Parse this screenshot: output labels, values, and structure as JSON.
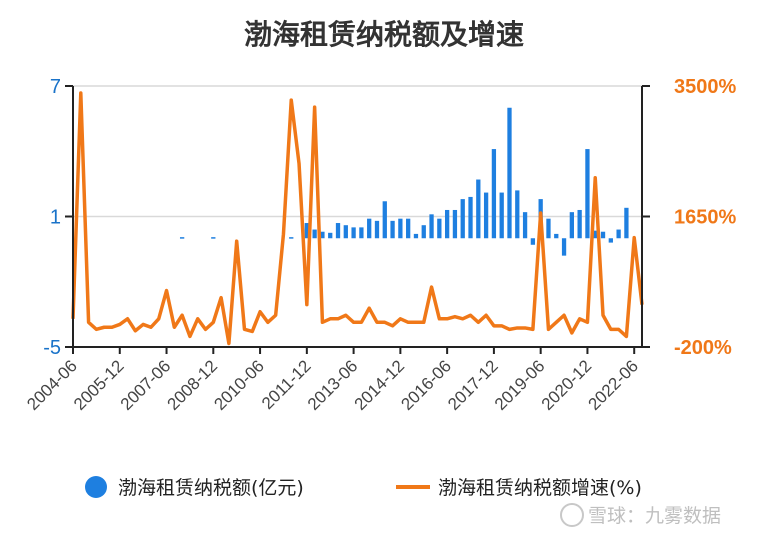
{
  "chart_data": {
    "type": "bar+line",
    "title": "渤海租赁纳税额及增速",
    "x_tick_labels": [
      "2004-06",
      "2005-12",
      "2007-06",
      "2008-12",
      "2010-06",
      "2011-12",
      "2013-06",
      "2014-12",
      "2016-06",
      "2017-12",
      "2019-06",
      "2020-12",
      "2022-06"
    ],
    "series": [
      {
        "name": "渤海租赁纳税额(亿元)",
        "type": "bar",
        "axis": "left",
        "color": "#1e7fe0",
        "x": [
          "2004-06",
          "2004-09",
          "2004-12",
          "2005-03",
          "2005-06",
          "2005-09",
          "2005-12",
          "2006-03",
          "2006-06",
          "2006-09",
          "2006-12",
          "2007-03",
          "2007-06",
          "2007-09",
          "2007-12",
          "2008-03",
          "2008-06",
          "2008-09",
          "2008-12",
          "2009-03",
          "2009-06",
          "2009-09",
          "2009-12",
          "2010-03",
          "2010-06",
          "2010-09",
          "2010-12",
          "2011-03",
          "2011-06",
          "2011-09",
          "2011-12",
          "2012-03",
          "2012-06",
          "2012-09",
          "2012-12",
          "2013-03",
          "2013-06",
          "2013-09",
          "2013-12",
          "2014-03",
          "2014-06",
          "2014-09",
          "2014-12",
          "2015-03",
          "2015-06",
          "2015-09",
          "2015-12",
          "2016-03",
          "2016-06",
          "2016-09",
          "2016-12",
          "2017-03",
          "2017-06",
          "2017-09",
          "2017-12",
          "2018-03",
          "2018-06",
          "2018-09",
          "2018-12",
          "2019-03",
          "2019-06",
          "2019-09",
          "2019-12",
          "2020-03",
          "2020-06",
          "2020-09",
          "2020-12",
          "2021-03",
          "2021-06",
          "2021-09",
          "2021-12",
          "2022-03",
          "2022-06",
          "2022-09"
        ],
        "values": [
          null,
          null,
          null,
          null,
          null,
          null,
          null,
          null,
          null,
          null,
          null,
          null,
          null,
          null,
          0.05,
          null,
          null,
          null,
          0.05,
          null,
          null,
          null,
          null,
          null,
          null,
          null,
          null,
          null,
          0.05,
          null,
          0.7,
          0.4,
          0.3,
          0.25,
          0.7,
          0.6,
          0.5,
          0.5,
          0.9,
          0.8,
          1.7,
          0.8,
          0.9,
          0.9,
          0.2,
          0.6,
          1.1,
          0.9,
          1.3,
          1.3,
          1.8,
          1.9,
          2.7,
          2.1,
          4.1,
          2.1,
          6.0,
          2.2,
          1.2,
          -0.3,
          1.8,
          0.9,
          0.2,
          -0.8,
          1.2,
          1.3,
          4.1,
          0.35,
          0.3,
          -0.2,
          0.4,
          1.4,
          null,
          null
        ]
      },
      {
        "name": "渤海租赁纳税额增速(%)",
        "type": "line",
        "axis": "right",
        "color": "#f07818",
        "x": [
          "2004-06",
          "2004-09",
          "2004-12",
          "2005-03",
          "2005-06",
          "2005-09",
          "2005-12",
          "2006-03",
          "2006-06",
          "2006-09",
          "2006-12",
          "2007-03",
          "2007-06",
          "2007-09",
          "2007-12",
          "2008-03",
          "2008-06",
          "2008-09",
          "2008-12",
          "2009-03",
          "2009-06",
          "2009-09",
          "2009-12",
          "2010-03",
          "2010-06",
          "2010-09",
          "2010-12",
          "2011-03",
          "2011-06",
          "2011-09",
          "2011-12",
          "2012-03",
          "2012-06",
          "2012-09",
          "2012-12",
          "2013-03",
          "2013-06",
          "2013-09",
          "2013-12",
          "2014-03",
          "2014-06",
          "2014-09",
          "2014-12",
          "2015-03",
          "2015-06",
          "2015-09",
          "2015-12",
          "2016-03",
          "2016-06",
          "2016-09",
          "2016-12",
          "2017-03",
          "2017-06",
          "2017-09",
          "2017-12",
          "2018-03",
          "2018-06",
          "2018-09",
          "2018-12",
          "2019-03",
          "2019-06",
          "2019-09",
          "2019-12",
          "2020-03",
          "2020-06",
          "2020-09",
          "2020-12",
          "2021-03",
          "2021-06",
          "2021-09",
          "2021-12",
          "2022-03",
          "2022-06",
          "2022-09"
        ],
        "values": [
          200,
          3400,
          150,
          50,
          80,
          80,
          120,
          200,
          30,
          120,
          80,
          200,
          600,
          80,
          250,
          -50,
          200,
          50,
          150,
          500,
          -150,
          1300,
          50,
          20,
          300,
          150,
          250,
          1400,
          3300,
          2400,
          400,
          3200,
          150,
          200,
          200,
          250,
          150,
          150,
          350,
          150,
          150,
          100,
          200,
          150,
          150,
          150,
          650,
          200,
          200,
          230,
          200,
          250,
          150,
          250,
          100,
          100,
          50,
          70,
          70,
          50,
          1700,
          50,
          150,
          250,
          0,
          200,
          150,
          2200,
          250,
          50,
          50,
          -50,
          1350,
          400
        ]
      }
    ],
    "y_left": {
      "ticks": [
        "7",
        "1",
        "-5"
      ],
      "range": [
        -5,
        7
      ]
    },
    "y_right": {
      "ticks": [
        "3500%",
        "1650%",
        "-200%"
      ],
      "range": [
        -200,
        3500
      ]
    },
    "grid": {
      "horizontal": true,
      "vertical": false
    },
    "legend_position": "bottom"
  },
  "watermark": "雪球：九雾数据"
}
